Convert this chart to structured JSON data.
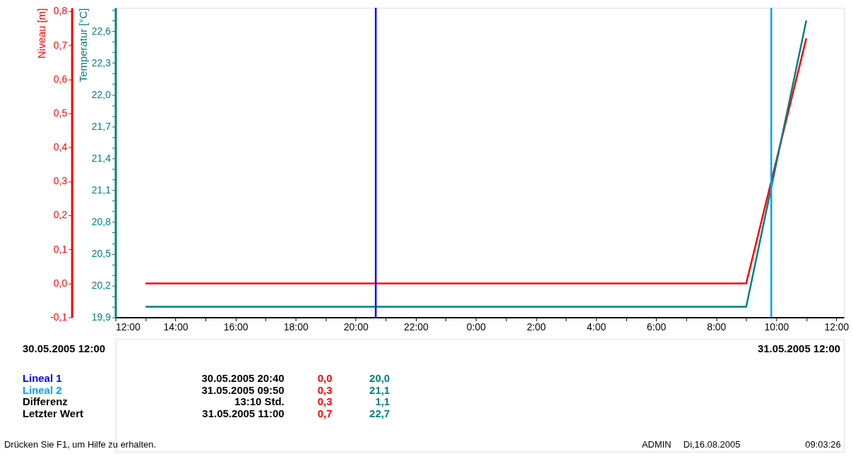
{
  "chart_data": {
    "type": "line",
    "ylabel": "Niveau [m]",
    "y2label": "Temperatur [°C]",
    "x": [
      "2005-05-30T13:00",
      "2005-05-31T09:00",
      "2005-05-31T11:00"
    ],
    "series": [
      {
        "color": "#ff0000",
        "values": [
          0.0,
          0.0,
          0.72
        ]
      },
      {
        "color": "#008080",
        "values": [
          20.0,
          20.0,
          22.7
        ],
        "axis": "y2"
      }
    ],
    "xlim": [
      "2005-05-30T12:00",
      "2005-05-31T12:15"
    ],
    "xticks": [
      {
        "value": "2005-05-30T12:00",
        "label": "12:00"
      },
      {
        "value": "2005-05-30T13:00",
        "label": null
      },
      {
        "value": "2005-05-30T14:00",
        "label": "14:00"
      },
      {
        "value": "2005-05-30T15:00",
        "label": null
      },
      {
        "value": "2005-05-30T16:00",
        "label": "16:00"
      },
      {
        "value": "2005-05-30T17:00",
        "label": null
      },
      {
        "value": "2005-05-30T18:00",
        "label": "18:00"
      },
      {
        "value": "2005-05-30T19:00",
        "label": null
      },
      {
        "value": "2005-05-30T20:00",
        "label": "20:00"
      },
      {
        "value": "2005-05-30T21:00",
        "label": null
      },
      {
        "value": "2005-05-30T22:00",
        "label": "22:00"
      },
      {
        "value": "2005-05-30T23:00",
        "label": null
      },
      {
        "value": "2005-05-31T00:00",
        "label": "0:00"
      },
      {
        "value": "2005-05-31T01:00",
        "label": null
      },
      {
        "value": "2005-05-31T02:00",
        "label": "2:00"
      },
      {
        "value": "2005-05-31T03:00",
        "label": null
      },
      {
        "value": "2005-05-31T04:00",
        "label": "4:00"
      },
      {
        "value": "2005-05-31T05:00",
        "label": null
      },
      {
        "value": "2005-05-31T06:00",
        "label": "6:00"
      },
      {
        "value": "2005-05-31T07:00",
        "label": null
      },
      {
        "value": "2005-05-31T08:00",
        "label": "8:00"
      },
      {
        "value": "2005-05-31T09:00",
        "label": null
      },
      {
        "value": "2005-05-31T10:00",
        "label": "10:00"
      },
      {
        "value": "2005-05-31T11:00",
        "label": null
      },
      {
        "value": "2005-05-31T12:00",
        "label": "12:00"
      }
    ],
    "ylim": [
      -0.1,
      0.81
    ],
    "yticks": [
      {
        "value": -0.1,
        "label": "-0,1"
      },
      {
        "value": 0.0,
        "label": "0,0"
      },
      {
        "value": 0.1,
        "label": "0,1"
      },
      {
        "value": 0.2,
        "label": "0,2"
      },
      {
        "value": 0.3,
        "label": "0,3"
      },
      {
        "value": 0.4,
        "label": "0,4"
      },
      {
        "value": 0.5,
        "label": "0,5"
      },
      {
        "value": 0.6,
        "label": "0,6"
      },
      {
        "value": 0.7,
        "label": "0,7"
      },
      {
        "value": 0.8,
        "label": "0,8"
      }
    ],
    "y2lim": [
      19.9,
      22.82
    ],
    "y2ticks": [
      {
        "value": 19.9,
        "label": "19,9"
      },
      {
        "value": 20.0,
        "label": null
      },
      {
        "value": 20.1,
        "label": null
      },
      {
        "value": 20.2,
        "label": "20,2"
      },
      {
        "value": 20.3,
        "label": null
      },
      {
        "value": 20.4,
        "label": null
      },
      {
        "value": 20.5,
        "label": "20,5"
      },
      {
        "value": 20.6,
        "label": null
      },
      {
        "value": 20.7,
        "label": null
      },
      {
        "value": 20.8,
        "label": "20,8"
      },
      {
        "value": 20.9,
        "label": null
      },
      {
        "value": 21.0,
        "label": null
      },
      {
        "value": 21.1,
        "label": "21,1"
      },
      {
        "value": 21.2,
        "label": null
      },
      {
        "value": 21.3,
        "label": null
      },
      {
        "value": 21.4,
        "label": "21,4"
      },
      {
        "value": 21.5,
        "label": null
      },
      {
        "value": 21.6,
        "label": null
      },
      {
        "value": 21.7,
        "label": "21,7"
      },
      {
        "value": 21.8,
        "label": null
      },
      {
        "value": 21.9,
        "label": null
      },
      {
        "value": 22.0,
        "label": "22,0"
      },
      {
        "value": 22.1,
        "label": null
      },
      {
        "value": 22.2,
        "label": null
      },
      {
        "value": 22.3,
        "label": "22,3"
      },
      {
        "value": 22.4,
        "label": null
      },
      {
        "value": 22.5,
        "label": null
      },
      {
        "value": 22.6,
        "label": "22,6"
      },
      {
        "value": 22.7,
        "label": null
      },
      {
        "value": 22.8,
        "label": null
      }
    ],
    "ref_lines": [
      {
        "axis": "x",
        "value": "2005-05-30T20:40",
        "color": "#0000ff"
      },
      {
        "axis": "x",
        "value": "2005-05-31T09:50",
        "color": "#00a0ff"
      }
    ],
    "grid": false,
    "annotations": [
      "30.05.2005 12:00",
      "31.05.2005 12:00",
      "Lineal 1",
      "30.05.2005 20:40",
      "0,0",
      "20,0",
      "Lineal 2",
      "31.05.2005 09:50",
      "0,3",
      "21,1",
      "Differenz",
      "13:10 Std.",
      "0,3",
      "1,1",
      "Letzter Wert",
      "31.05.2005 11:00",
      "0,7",
      "22,7",
      "Drücken Sie F1, um Hilfe zu erhalten.",
      "ADMIN",
      "Di,16.08.2005",
      "09:03:26"
    ]
  }
}
